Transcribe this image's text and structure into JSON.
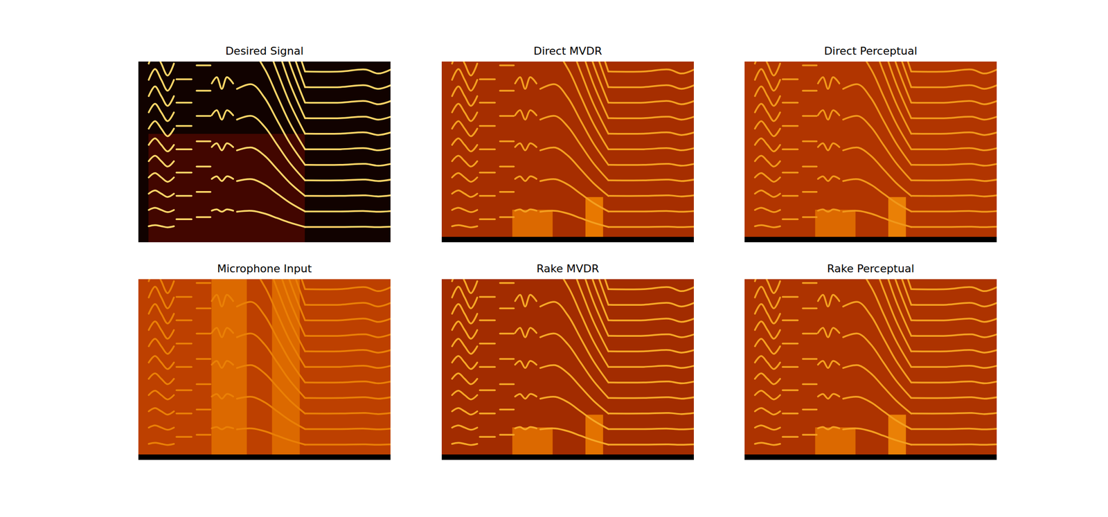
{
  "chart_data": [
    {
      "type": "spectrogram",
      "title": "Desired Signal",
      "tick_labels": false,
      "xlim": [
        0,
        100
      ],
      "ylim": [
        0,
        100
      ],
      "background": 0.03,
      "bands": [
        {
          "t": [
            4,
            66
          ],
          "f": [
            0,
            60
          ],
          "level": 0.12
        }
      ],
      "notes": [
        {
          "t": [
            4,
            6.5,
            9,
            11.5,
            14
          ],
          "f0": [
            9,
            9.6,
            9,
            8.4,
            9
          ],
          "harmonics": 11,
          "level": 0.85
        },
        {
          "t": [
            15,
            18,
            21
          ],
          "f0": [
            12.9,
            12.9,
            12.9
          ],
          "harmonics": 7,
          "level": 0.85
        },
        {
          "t": [
            23,
            26,
            28.5
          ],
          "f0": [
            14,
            14,
            14
          ],
          "harmonics": 7,
          "level": 0.85
        },
        {
          "t": [
            29,
            31,
            33,
            35,
            37.5
          ],
          "f0": [
            17.6,
            18.3,
            17,
            18.3,
            17.6
          ],
          "harmonics": 5,
          "level": 0.85
        },
        {
          "t": [
            39,
            45,
            50,
            55,
            60,
            66
          ],
          "f0": [
            17,
            17.5,
            16,
            13.5,
            11,
            8.6
          ],
          "harmonics": 11,
          "level": 0.85
        },
        {
          "t": [
            66,
            80,
            90,
            95,
            100
          ],
          "f0": [
            8.6,
            8.6,
            8.7,
            8.5,
            8.7
          ],
          "harmonics": 11,
          "level": 0.85
        }
      ]
    },
    {
      "type": "spectrogram",
      "title": "Direct MVDR",
      "tick_labels": false,
      "xlim": [
        0,
        100
      ],
      "ylim": [
        0,
        100
      ],
      "background": 0.35,
      "bands": [
        {
          "t": [
            28,
            44
          ],
          "f": [
            3,
            18
          ],
          "level": 0.55
        },
        {
          "t": [
            57,
            64
          ],
          "f": [
            3,
            25
          ],
          "level": 0.6
        },
        {
          "t": [
            0,
            100
          ],
          "f": [
            0,
            3
          ],
          "level": 0
        }
      ],
      "notes": [
        {
          "t": [
            4,
            6.5,
            9,
            11.5,
            14
          ],
          "f0": [
            9,
            9.6,
            9,
            8.4,
            9
          ],
          "harmonics": 11,
          "level": 0.7
        },
        {
          "t": [
            15,
            18,
            21
          ],
          "f0": [
            12.9,
            12.9,
            12.9
          ],
          "harmonics": 7,
          "level": 0.7
        },
        {
          "t": [
            23,
            26,
            28.5
          ],
          "f0": [
            14,
            14,
            14
          ],
          "harmonics": 7,
          "level": 0.7
        },
        {
          "t": [
            29,
            31,
            33,
            35,
            37.5
          ],
          "f0": [
            17.6,
            18.3,
            17,
            18.3,
            17.6
          ],
          "harmonics": 5,
          "level": 0.7
        },
        {
          "t": [
            39,
            45,
            50,
            55,
            60,
            66
          ],
          "f0": [
            17,
            17.5,
            16,
            13.5,
            11,
            8.6
          ],
          "harmonics": 11,
          "level": 0.7
        },
        {
          "t": [
            66,
            80,
            90,
            95,
            100
          ],
          "f0": [
            8.6,
            8.6,
            8.7,
            8.5,
            8.7
          ],
          "harmonics": 11,
          "level": 0.7
        }
      ]
    },
    {
      "type": "spectrogram",
      "title": "Direct Perceptual",
      "tick_labels": false,
      "xlim": [
        0,
        100
      ],
      "ylim": [
        0,
        100
      ],
      "background": 0.38,
      "bands": [
        {
          "t": [
            28,
            44
          ],
          "f": [
            3,
            18
          ],
          "level": 0.55
        },
        {
          "t": [
            57,
            64
          ],
          "f": [
            3,
            25
          ],
          "level": 0.62
        },
        {
          "t": [
            0,
            100
          ],
          "f": [
            0,
            3
          ],
          "level": 0
        }
      ],
      "notes": [
        {
          "t": [
            4,
            6.5,
            9,
            11.5,
            14
          ],
          "f0": [
            9,
            9.6,
            9,
            8.4,
            9
          ],
          "harmonics": 11,
          "level": 0.68
        },
        {
          "t": [
            15,
            18,
            21
          ],
          "f0": [
            12.9,
            12.9,
            12.9
          ],
          "harmonics": 7,
          "level": 0.68
        },
        {
          "t": [
            23,
            26,
            28.5
          ],
          "f0": [
            14,
            14,
            14
          ],
          "harmonics": 7,
          "level": 0.68
        },
        {
          "t": [
            29,
            31,
            33,
            35,
            37.5
          ],
          "f0": [
            17.6,
            18.3,
            17,
            18.3,
            17.6
          ],
          "harmonics": 5,
          "level": 0.68
        },
        {
          "t": [
            39,
            45,
            50,
            55,
            60,
            66
          ],
          "f0": [
            17,
            17.5,
            16,
            13.5,
            11,
            8.6
          ],
          "harmonics": 11,
          "level": 0.68
        },
        {
          "t": [
            66,
            80,
            90,
            95,
            100
          ],
          "f0": [
            8.6,
            8.6,
            8.7,
            8.5,
            8.7
          ],
          "harmonics": 11,
          "level": 0.68
        }
      ]
    },
    {
      "type": "spectrogram",
      "title": "Microphone Input",
      "tick_labels": false,
      "xlim": [
        0,
        100
      ],
      "ylim": [
        0,
        100
      ],
      "background": 0.42,
      "bands": [
        {
          "t": [
            29,
            43
          ],
          "f": [
            3,
            100
          ],
          "level": 0.55
        },
        {
          "t": [
            53,
            64
          ],
          "f": [
            3,
            100
          ],
          "level": 0.55
        },
        {
          "t": [
            0,
            100
          ],
          "f": [
            0,
            3
          ],
          "level": 0
        }
      ],
      "notes": [
        {
          "t": [
            4,
            6.5,
            9,
            11.5,
            14
          ],
          "f0": [
            9,
            9.6,
            9,
            8.4,
            9
          ],
          "harmonics": 11,
          "level": 0.62
        },
        {
          "t": [
            15,
            18,
            21
          ],
          "f0": [
            12.9,
            12.9,
            12.9
          ],
          "harmonics": 7,
          "level": 0.62
        },
        {
          "t": [
            23,
            26,
            28.5
          ],
          "f0": [
            14,
            14,
            14
          ],
          "harmonics": 7,
          "level": 0.62
        },
        {
          "t": [
            29,
            31,
            33,
            35,
            37.5
          ],
          "f0": [
            17.6,
            18.3,
            17,
            18.3,
            17.6
          ],
          "harmonics": 5,
          "level": 0.62
        },
        {
          "t": [
            39,
            45,
            50,
            55,
            60,
            66
          ],
          "f0": [
            17,
            17.5,
            16,
            13.5,
            11,
            8.6
          ],
          "harmonics": 11,
          "level": 0.62
        },
        {
          "t": [
            66,
            80,
            90,
            95,
            100
          ],
          "f0": [
            8.6,
            8.6,
            8.7,
            8.5,
            8.7
          ],
          "harmonics": 11,
          "level": 0.62
        }
      ]
    },
    {
      "type": "spectrogram",
      "title": "Rake MVDR",
      "tick_labels": false,
      "xlim": [
        0,
        100
      ],
      "ylim": [
        0,
        100
      ],
      "background": 0.34,
      "bands": [
        {
          "t": [
            28,
            44
          ],
          "f": [
            3,
            18
          ],
          "level": 0.55
        },
        {
          "t": [
            57,
            64
          ],
          "f": [
            3,
            25
          ],
          "level": 0.58
        },
        {
          "t": [
            0,
            100
          ],
          "f": [
            0,
            3
          ],
          "level": 0
        }
      ],
      "notes": [
        {
          "t": [
            4,
            6.5,
            9,
            11.5,
            14
          ],
          "f0": [
            9,
            9.6,
            9,
            8.4,
            9
          ],
          "harmonics": 11,
          "level": 0.72
        },
        {
          "t": [
            15,
            18,
            21
          ],
          "f0": [
            12.9,
            12.9,
            12.9
          ],
          "harmonics": 7,
          "level": 0.72
        },
        {
          "t": [
            23,
            26,
            28.5
          ],
          "f0": [
            14,
            14,
            14
          ],
          "harmonics": 7,
          "level": 0.72
        },
        {
          "t": [
            29,
            31,
            33,
            35,
            37.5
          ],
          "f0": [
            17.6,
            18.3,
            17,
            18.3,
            17.6
          ],
          "harmonics": 5,
          "level": 0.72
        },
        {
          "t": [
            39,
            45,
            50,
            55,
            60,
            66
          ],
          "f0": [
            17,
            17.5,
            16,
            13.5,
            11,
            8.6
          ],
          "harmonics": 11,
          "level": 0.72
        },
        {
          "t": [
            66,
            80,
            90,
            95,
            100
          ],
          "f0": [
            8.6,
            8.6,
            8.7,
            8.5,
            8.7
          ],
          "harmonics": 11,
          "level": 0.72
        }
      ]
    },
    {
      "type": "spectrogram",
      "title": "Rake Perceptual",
      "tick_labels": false,
      "xlim": [
        0,
        100
      ],
      "ylim": [
        0,
        100
      ],
      "background": 0.37,
      "bands": [
        {
          "t": [
            28,
            44
          ],
          "f": [
            3,
            18
          ],
          "level": 0.55
        },
        {
          "t": [
            57,
            64
          ],
          "f": [
            3,
            25
          ],
          "level": 0.62
        },
        {
          "t": [
            0,
            100
          ],
          "f": [
            0,
            3
          ],
          "level": 0
        }
      ],
      "notes": [
        {
          "t": [
            4,
            6.5,
            9,
            11.5,
            14
          ],
          "f0": [
            9,
            9.6,
            9,
            8.4,
            9
          ],
          "harmonics": 11,
          "level": 0.7
        },
        {
          "t": [
            15,
            18,
            21
          ],
          "f0": [
            12.9,
            12.9,
            12.9
          ],
          "harmonics": 7,
          "level": 0.7
        },
        {
          "t": [
            23,
            26,
            28.5
          ],
          "f0": [
            14,
            14,
            14
          ],
          "harmonics": 7,
          "level": 0.7
        },
        {
          "t": [
            29,
            31,
            33,
            35,
            37.5
          ],
          "f0": [
            17.6,
            18.3,
            17,
            18.3,
            17.6
          ],
          "harmonics": 5,
          "level": 0.7
        },
        {
          "t": [
            39,
            45,
            50,
            55,
            60,
            66
          ],
          "f0": [
            17,
            17.5,
            16,
            13.5,
            11,
            8.6
          ],
          "harmonics": 11,
          "level": 0.7
        },
        {
          "t": [
            66,
            80,
            90,
            95,
            100
          ],
          "f0": [
            8.6,
            8.6,
            8.7,
            8.5,
            8.7
          ],
          "harmonics": 11,
          "level": 0.7
        }
      ]
    }
  ]
}
